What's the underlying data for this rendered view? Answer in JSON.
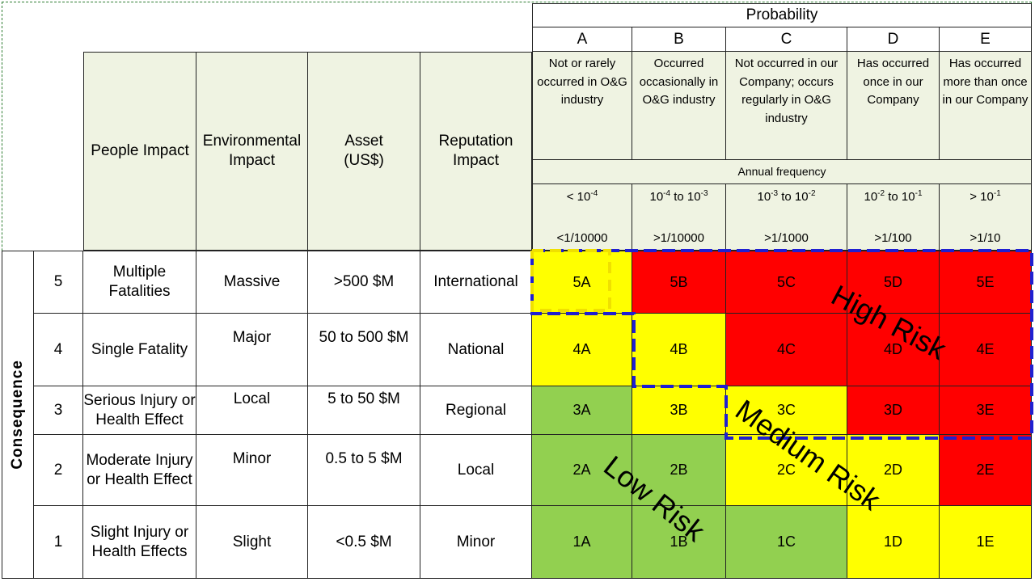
{
  "header": {
    "probability_title": "Probability",
    "annual_frequency": "Annual frequency",
    "consequence_label": "Consequence",
    "columns": [
      {
        "letter": "A",
        "desc": "Not or rarely occurred in O&G industry",
        "freq_base": "< 10",
        "freq_exp": "-4",
        "freq_text": "",
        "ratio": "<1/10000"
      },
      {
        "letter": "B",
        "desc": "Occurred occasionally in O&G industry",
        "freq_base": "10",
        "freq_exp": "-4",
        "freq_text": " to 10",
        "freq_exp2": "-3",
        "ratio": ">1/10000"
      },
      {
        "letter": "C",
        "desc": "Not occurred in our Company; occurs regularly in O&G industry",
        "freq_base": "10",
        "freq_exp": "-3",
        "freq_text": " to 10",
        "freq_exp2": "-2",
        "ratio": ">1/1000"
      },
      {
        "letter": "D",
        "desc": "Has occurred once in our Company",
        "freq_base": "10",
        "freq_exp": "-2",
        "freq_text": " to 10",
        "freq_exp2": "-1",
        "ratio": ">1/100"
      },
      {
        "letter": "E",
        "desc": "Has occurred more than once in our Company",
        "freq_base": "> 10",
        "freq_exp": "-1",
        "freq_text": "",
        "ratio": ">1/10"
      }
    ],
    "impact_headers": [
      "People Impact",
      "Environmental Impact",
      "Asset (US$)",
      "Reputation Impact"
    ]
  },
  "rows": [
    {
      "level": "5",
      "people": "Multiple Fatalities",
      "env": "Massive",
      "asset": ">500 $M",
      "rep": "International",
      "cells": [
        "5A",
        "5B",
        "5C",
        "5D",
        "5E"
      ],
      "colors": [
        "#ffff00",
        "#ff0000",
        "#ff0000",
        "#ff0000",
        "#ff0000"
      ]
    },
    {
      "level": "4",
      "people": "Single Fatality",
      "env": "Major",
      "asset": "50 to 500 $M",
      "rep": "National",
      "cells": [
        "4A",
        "4B",
        "4C",
        "4D",
        "4E"
      ],
      "colors": [
        "#ffff00",
        "#ffff00",
        "#ff0000",
        "#ff0000",
        "#ff0000"
      ]
    },
    {
      "level": "3",
      "people": "Serious Injury or Health Effect",
      "env": "Local",
      "asset": "5 to 50 $M",
      "rep": "Regional",
      "cells": [
        "3A",
        "3B",
        "3C",
        "3D",
        "3E"
      ],
      "colors": [
        "#92d050",
        "#ffff00",
        "#ffff00",
        "#ff0000",
        "#ff0000"
      ]
    },
    {
      "level": "2",
      "people": "Moderate Injury or Health Effect",
      "env": "Minor",
      "asset": "0.5 to 5 $M",
      "rep": "Local",
      "cells": [
        "2A",
        "2B",
        "2C",
        "2D",
        "2E"
      ],
      "colors": [
        "#92d050",
        "#92d050",
        "#ffff00",
        "#ffff00",
        "#ff0000"
      ]
    },
    {
      "level": "1",
      "people": "Slight Injury or Health Effects",
      "env": "Slight",
      "asset": "<0.5 $M",
      "rep": "Minor",
      "cells": [
        "1A",
        "1B",
        "1C",
        "1D",
        "1E"
      ],
      "colors": [
        "#92d050",
        "#92d050",
        "#92d050",
        "#ffff00",
        "#ffff00"
      ]
    }
  ],
  "risk_labels": {
    "high": "High Risk",
    "medium": "Medium Risk",
    "low": "Low Risk"
  },
  "colors": {
    "high": "#ff0000",
    "medium": "#ffff00",
    "low": "#92d050",
    "header_bg": "#eff3e2",
    "boundary": "#1f1fd1"
  }
}
